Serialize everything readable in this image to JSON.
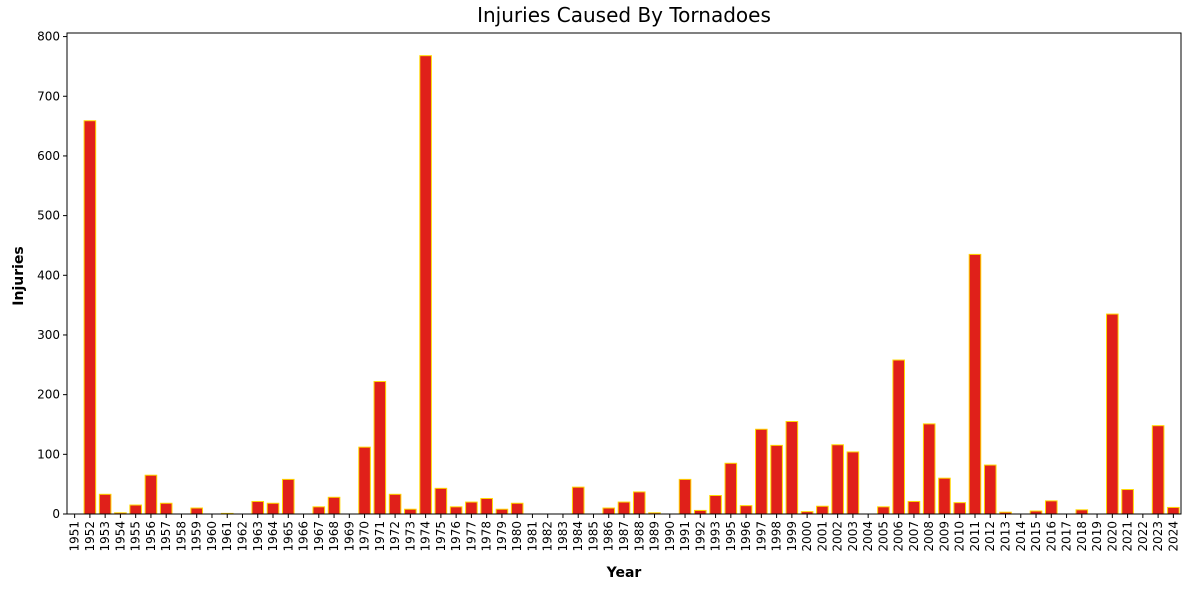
{
  "chart_data": {
    "type": "bar",
    "title": "Injuries Caused By Tornadoes",
    "x_label": "Year",
    "y_label": "Injuries",
    "categories": [
      "1951",
      "1952",
      "1953",
      "1954",
      "1955",
      "1956",
      "1957",
      "1958",
      "1959",
      "1960",
      "1961",
      "1962",
      "1963",
      "1964",
      "1965",
      "1966",
      "1967",
      "1968",
      "1969",
      "1970",
      "1971",
      "1972",
      "1973",
      "1974",
      "1975",
      "1976",
      "1977",
      "1978",
      "1979",
      "1980",
      "1981",
      "1982",
      "1983",
      "1984",
      "1985",
      "1986",
      "1987",
      "1988",
      "1989",
      "1990",
      "1991",
      "1992",
      "1993",
      "1995",
      "1996",
      "1997",
      "1998",
      "1999",
      "2000",
      "2001",
      "2002",
      "2003",
      "2004",
      "2005",
      "2006",
      "2007",
      "2008",
      "2009",
      "2010",
      "2011",
      "2012",
      "2013",
      "2014",
      "2015",
      "2016",
      "2017",
      "2018",
      "2019",
      "2020",
      "2021",
      "2022",
      "2023",
      "2024"
    ],
    "values": [
      0,
      659,
      33,
      2,
      15,
      65,
      18,
      0,
      10,
      0,
      1,
      0,
      21,
      18,
      58,
      0,
      12,
      28,
      0,
      112,
      222,
      33,
      8,
      768,
      43,
      12,
      20,
      26,
      8,
      18,
      0,
      0,
      0,
      45,
      0,
      10,
      20,
      37,
      2,
      0,
      58,
      6,
      31,
      85,
      14,
      142,
      115,
      155,
      4,
      13,
      116,
      104,
      0,
      12,
      258,
      21,
      151,
      60,
      19,
      435,
      82,
      3,
      0,
      5,
      22,
      0,
      7,
      0,
      335,
      41,
      0,
      148,
      11
    ],
    "color": "#e0201a",
    "edge_color": "#ffd700",
    "ylim": [
      0,
      806
    ],
    "yticks": [
      0,
      100,
      200,
      300,
      400,
      500,
      600,
      700,
      800
    ]
  }
}
